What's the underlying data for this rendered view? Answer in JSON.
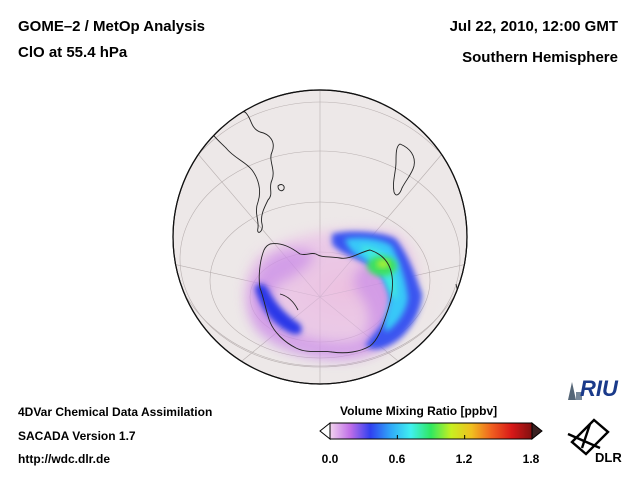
{
  "header": {
    "title": "GOME–2 / MetOp Analysis",
    "species": "ClO at 55.4 hPa",
    "datetime": "Jul 22, 2010, 12:00 GMT",
    "region": "Southern Hemisphere"
  },
  "footer": {
    "line1": "4DVar Chemical Data Assimilation",
    "line2": "SACADA Version 1.7",
    "url": "http://wdc.dlr.de"
  },
  "colorbar": {
    "title": "Volume Mixing Ratio [ppbv]",
    "ticks": [
      "0.0",
      "0.6",
      "1.2",
      "1.8"
    ],
    "stops": [
      "#f2d4ee",
      "#c06ee8",
      "#3040f0",
      "#30a8f8",
      "#40f0f0",
      "#30e860",
      "#c8f020",
      "#f0c020",
      "#f06020",
      "#d81818",
      "#801010"
    ]
  },
  "logos": {
    "riu": "RIU",
    "dlr": "DLR"
  },
  "colors": {
    "globe_fill": "#ede8e8",
    "polar_fill": "#f5dada",
    "coast": "#222222"
  }
}
